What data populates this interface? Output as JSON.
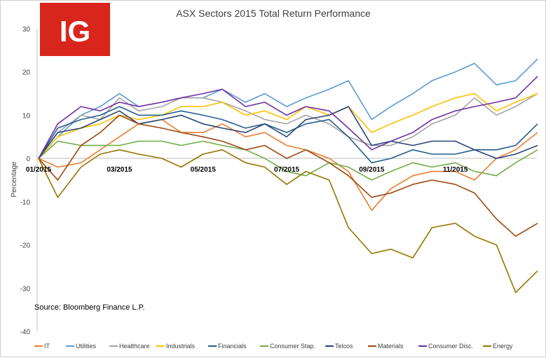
{
  "logo": {
    "text": "IG",
    "bg_color": "#d8261c"
  },
  "source_note": "Source: Bloomberg Finance L.P.",
  "chart_data": {
    "type": "line",
    "title": "ASX Sectors 2015 Total Return Performance",
    "xlabel": "",
    "ylabel": "Percentage",
    "ylim": [
      -40,
      30
    ],
    "yticks": [
      "30",
      "20",
      "10",
      "0",
      "-10",
      "-20",
      "-30",
      "-40"
    ],
    "xlim": [
      "2015-01-01",
      "2015-12-31"
    ],
    "x_tick_labels": [
      "01/2015",
      "03/2015",
      "05/2015",
      "07/2015",
      "09/2015",
      "11/2015"
    ],
    "x_tick_dates": [
      "2015-01-01",
      "2015-03-01",
      "2015-05-01",
      "2015-07-01",
      "2015-09-01",
      "2015-11-01"
    ],
    "grid": false,
    "legend_position": "bottom",
    "x": [
      "2015-01-01",
      "2015-01-15",
      "2015-02-01",
      "2015-02-15",
      "2015-03-01",
      "2015-03-15",
      "2015-04-01",
      "2015-04-15",
      "2015-05-01",
      "2015-05-15",
      "2015-06-01",
      "2015-06-15",
      "2015-07-01",
      "2015-07-15",
      "2015-08-01",
      "2015-08-15",
      "2015-09-01",
      "2015-09-15",
      "2015-10-01",
      "2015-10-15",
      "2015-11-01",
      "2015-11-15",
      "2015-12-01",
      "2015-12-15",
      "2015-12-31"
    ],
    "series": [
      {
        "name": "IT",
        "color": "#ed7d31",
        "values": [
          0,
          -2,
          -1,
          2,
          5,
          8,
          9,
          6,
          6,
          8,
          5,
          6,
          3,
          2,
          0,
          -3,
          -12,
          -7,
          -4,
          -3,
          -3,
          -5,
          0,
          2,
          6
        ]
      },
      {
        "name": "Utilities",
        "color": "#5b9bd5",
        "values": [
          0,
          5,
          10,
          12,
          15,
          12,
          13,
          14,
          14,
          16,
          13,
          15,
          12,
          14,
          16,
          18,
          9,
          12,
          15,
          18,
          20,
          22,
          17,
          18,
          23
        ]
      },
      {
        "name": "Healthcare",
        "color": "#a5a5a5",
        "values": [
          0,
          6,
          10,
          9,
          14,
          11,
          12,
          14,
          14,
          13,
          11,
          9,
          8,
          10,
          8,
          5,
          3,
          3,
          5,
          8,
          10,
          14,
          10,
          12,
          15
        ]
      },
      {
        "name": "Industrials",
        "color": "#ffc000",
        "values": [
          0,
          5,
          7,
          8,
          10,
          9,
          10,
          12,
          12,
          13,
          10,
          11,
          9,
          12,
          10,
          12,
          6,
          8,
          10,
          12,
          14,
          15,
          11,
          13,
          15
        ]
      },
      {
        "name": "Financials",
        "color": "#255e91",
        "values": [
          0,
          7,
          9,
          10,
          12,
          10,
          10,
          11,
          10,
          9,
          7,
          8,
          6,
          8,
          9,
          5,
          -1,
          0,
          2,
          1,
          1,
          2,
          2,
          3,
          8
        ]
      },
      {
        "name": "Consumer Stap.",
        "color": "#70ad47",
        "values": [
          0,
          4,
          3,
          3,
          3,
          4,
          4,
          3,
          4,
          3,
          2,
          0,
          -3,
          -4,
          -1,
          -2,
          -5,
          -3,
          -1,
          -2,
          -1,
          -3,
          -4,
          -1,
          2
        ]
      },
      {
        "name": "Telcos",
        "color": "#264478",
        "values": [
          0,
          6,
          7,
          9,
          11,
          8,
          9,
          10,
          8,
          7,
          6,
          8,
          5,
          9,
          10,
          12,
          3,
          4,
          3,
          4,
          4,
          2,
          0,
          1,
          3
        ]
      },
      {
        "name": "Materials",
        "color": "#9e480e",
        "values": [
          0,
          -5,
          3,
          6,
          10,
          8,
          7,
          6,
          5,
          4,
          2,
          3,
          0,
          2,
          -1,
          -4,
          -9,
          -8,
          -6,
          -5,
          -6,
          -8,
          -14,
          -18,
          -15
        ]
      },
      {
        "name": "Consumer Disc.",
        "color": "#7030a0",
        "values": [
          0,
          8,
          12,
          11,
          13,
          12,
          13,
          14,
          15,
          16,
          12,
          13,
          10,
          12,
          11,
          7,
          2,
          4,
          6,
          9,
          11,
          12,
          13,
          14,
          19
        ]
      },
      {
        "name": "Energy",
        "color": "#997300",
        "values": [
          0,
          -9,
          -2,
          1,
          2,
          1,
          0,
          -2,
          1,
          2,
          -1,
          -2,
          -6,
          -3,
          -5,
          -16,
          -22,
          -21,
          -23,
          -16,
          -15,
          -18,
          -20,
          -31,
          -26
        ]
      }
    ]
  }
}
